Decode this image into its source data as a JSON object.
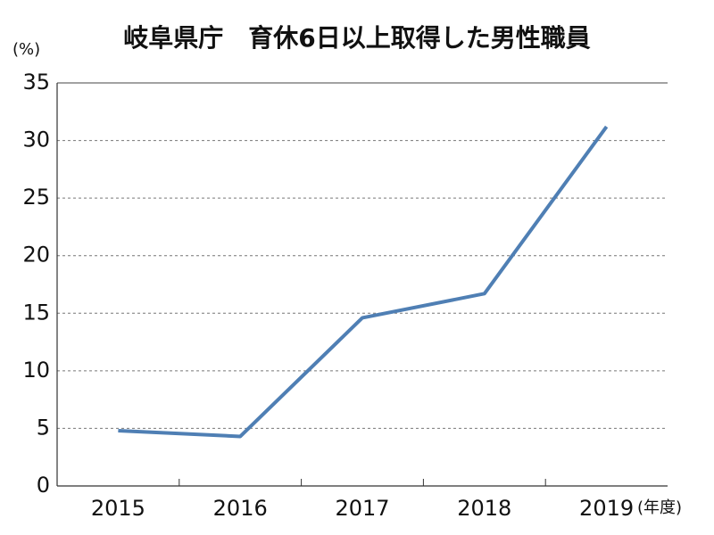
{
  "chart_data": {
    "type": "line",
    "title": "岐阜県庁　育休6日以上取得した男性職員",
    "y_label": "(%)",
    "x_label": "(年度)",
    "categories": [
      "2015",
      "2016",
      "2017",
      "2018",
      "2019"
    ],
    "series": [
      {
        "name": "男性職員",
        "color": "#4f7fb4",
        "values": [
          4.8,
          4.3,
          14.6,
          16.7,
          31.2
        ]
      }
    ],
    "ylim": [
      0,
      35
    ],
    "yticks": [
      0,
      5,
      10,
      15,
      20,
      25,
      30,
      35
    ],
    "grid": true
  }
}
